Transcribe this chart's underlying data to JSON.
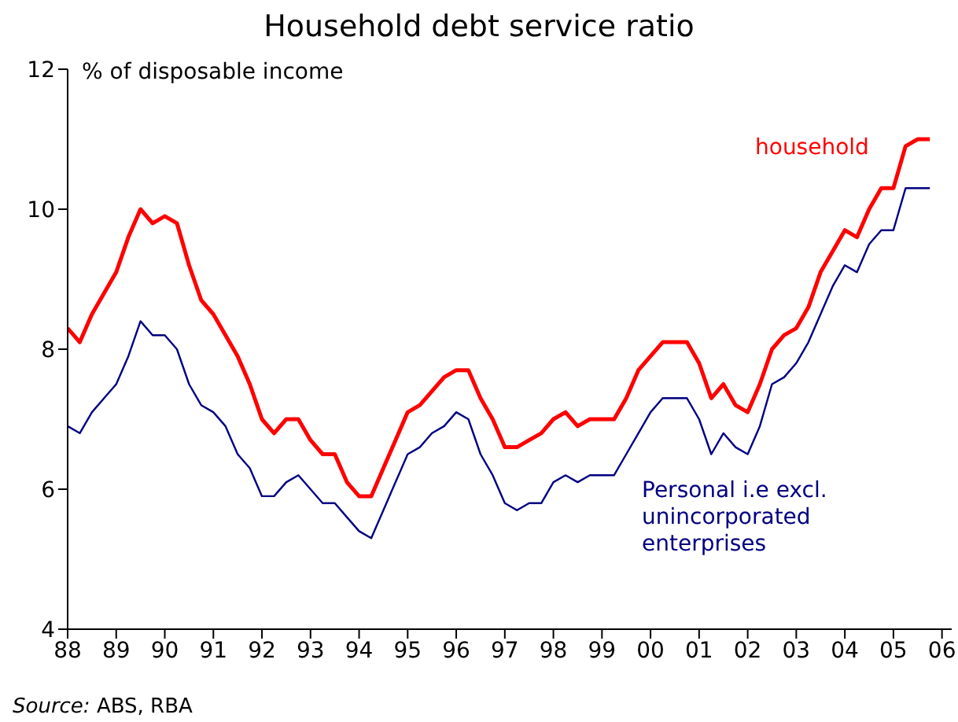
{
  "chart_data": {
    "type": "line",
    "title": "Household debt service ratio",
    "ylabel": "% of disposable income",
    "annotations": [
      "Source: ABS, RBA"
    ],
    "x": [
      1988,
      1988.25,
      1988.5,
      1988.75,
      1989,
      1989.25,
      1989.5,
      1989.75,
      1990,
      1990.25,
      1990.5,
      1990.75,
      1991,
      1991.25,
      1991.5,
      1991.75,
      1992,
      1992.25,
      1992.5,
      1992.75,
      1993,
      1993.25,
      1993.5,
      1993.75,
      1994,
      1994.25,
      1994.5,
      1994.75,
      1995,
      1995.25,
      1995.5,
      1995.75,
      1996,
      1996.25,
      1996.5,
      1996.75,
      1997,
      1997.25,
      1997.5,
      1997.75,
      1998,
      1998.25,
      1998.5,
      1998.75,
      1999,
      1999.25,
      1999.5,
      1999.75,
      2000,
      2000.25,
      2000.5,
      2000.75,
      2001,
      2001.25,
      2001.5,
      2001.75,
      2002,
      2002.25,
      2002.5,
      2002.75,
      2003,
      2003.25,
      2003.5,
      2003.75,
      2004,
      2004.25,
      2004.5,
      2004.75,
      2005,
      2005.25,
      2005.5,
      2005.75
    ],
    "series": [
      {
        "name": "household",
        "color": "#ff0000",
        "values": [
          8.3,
          8.1,
          8.5,
          8.8,
          9.1,
          9.6,
          10.0,
          9.8,
          9.9,
          9.8,
          9.2,
          8.7,
          8.5,
          8.2,
          7.9,
          7.5,
          7.0,
          6.8,
          7.0,
          7.0,
          6.7,
          6.5,
          6.5,
          6.1,
          5.9,
          5.9,
          6.3,
          6.7,
          7.1,
          7.2,
          7.4,
          7.6,
          7.7,
          7.7,
          7.3,
          7.0,
          6.6,
          6.6,
          6.7,
          6.8,
          7.0,
          7.1,
          6.9,
          7.0,
          7.0,
          7.0,
          7.3,
          7.7,
          7.9,
          8.1,
          8.1,
          8.1,
          7.8,
          7.3,
          7.5,
          7.2,
          7.1,
          7.5,
          8.0,
          8.2,
          8.3,
          8.6,
          9.1,
          9.4,
          9.7,
          9.6,
          10.0,
          10.3,
          10.3,
          10.9,
          11.0,
          11.0
        ]
      },
      {
        "name": "Personal i.e excl. unincorporated enterprises",
        "color": "#000080",
        "values": [
          6.9,
          6.8,
          7.1,
          7.3,
          7.5,
          7.9,
          8.4,
          8.2,
          8.2,
          8.0,
          7.5,
          7.2,
          7.1,
          6.9,
          6.5,
          6.3,
          5.9,
          5.9,
          6.1,
          6.2,
          6.0,
          5.8,
          5.8,
          5.6,
          5.4,
          5.3,
          5.7,
          6.1,
          6.5,
          6.6,
          6.8,
          6.9,
          7.1,
          7.0,
          6.5,
          6.2,
          5.8,
          5.7,
          5.8,
          5.8,
          6.1,
          6.2,
          6.1,
          6.2,
          6.2,
          6.2,
          6.5,
          6.8,
          7.1,
          7.3,
          7.3,
          7.3,
          7.0,
          6.5,
          6.8,
          6.6,
          6.5,
          6.9,
          7.5,
          7.6,
          7.8,
          8.1,
          8.5,
          8.9,
          9.2,
          9.1,
          9.5,
          9.7,
          9.7,
          10.3,
          10.3,
          10.3
        ]
      }
    ],
    "xlim": [
      1988,
      2006.2
    ],
    "xticks": [
      {
        "value": 1988,
        "label": "88"
      },
      {
        "value": 1989,
        "label": "89"
      },
      {
        "value": 1990,
        "label": "90"
      },
      {
        "value": 1991,
        "label": "91"
      },
      {
        "value": 1992,
        "label": "92"
      },
      {
        "value": 1993,
        "label": "93"
      },
      {
        "value": 1994,
        "label": "94"
      },
      {
        "value": 1995,
        "label": "95"
      },
      {
        "value": 1996,
        "label": "96"
      },
      {
        "value": 1997,
        "label": "97"
      },
      {
        "value": 1998,
        "label": "98"
      },
      {
        "value": 1999,
        "label": "99"
      },
      {
        "value": 2000,
        "label": "00"
      },
      {
        "value": 2001,
        "label": "01"
      },
      {
        "value": 2002,
        "label": "02"
      },
      {
        "value": 2003,
        "label": "03"
      },
      {
        "value": 2004,
        "label": "04"
      },
      {
        "value": 2005,
        "label": "05"
      },
      {
        "value": 2006,
        "label": "06"
      }
    ],
    "ylim": [
      4,
      12
    ],
    "yticks": [
      4,
      6,
      8,
      10,
      12
    ],
    "grid": false,
    "legend": false,
    "marker": "none",
    "line_style": "solid"
  }
}
